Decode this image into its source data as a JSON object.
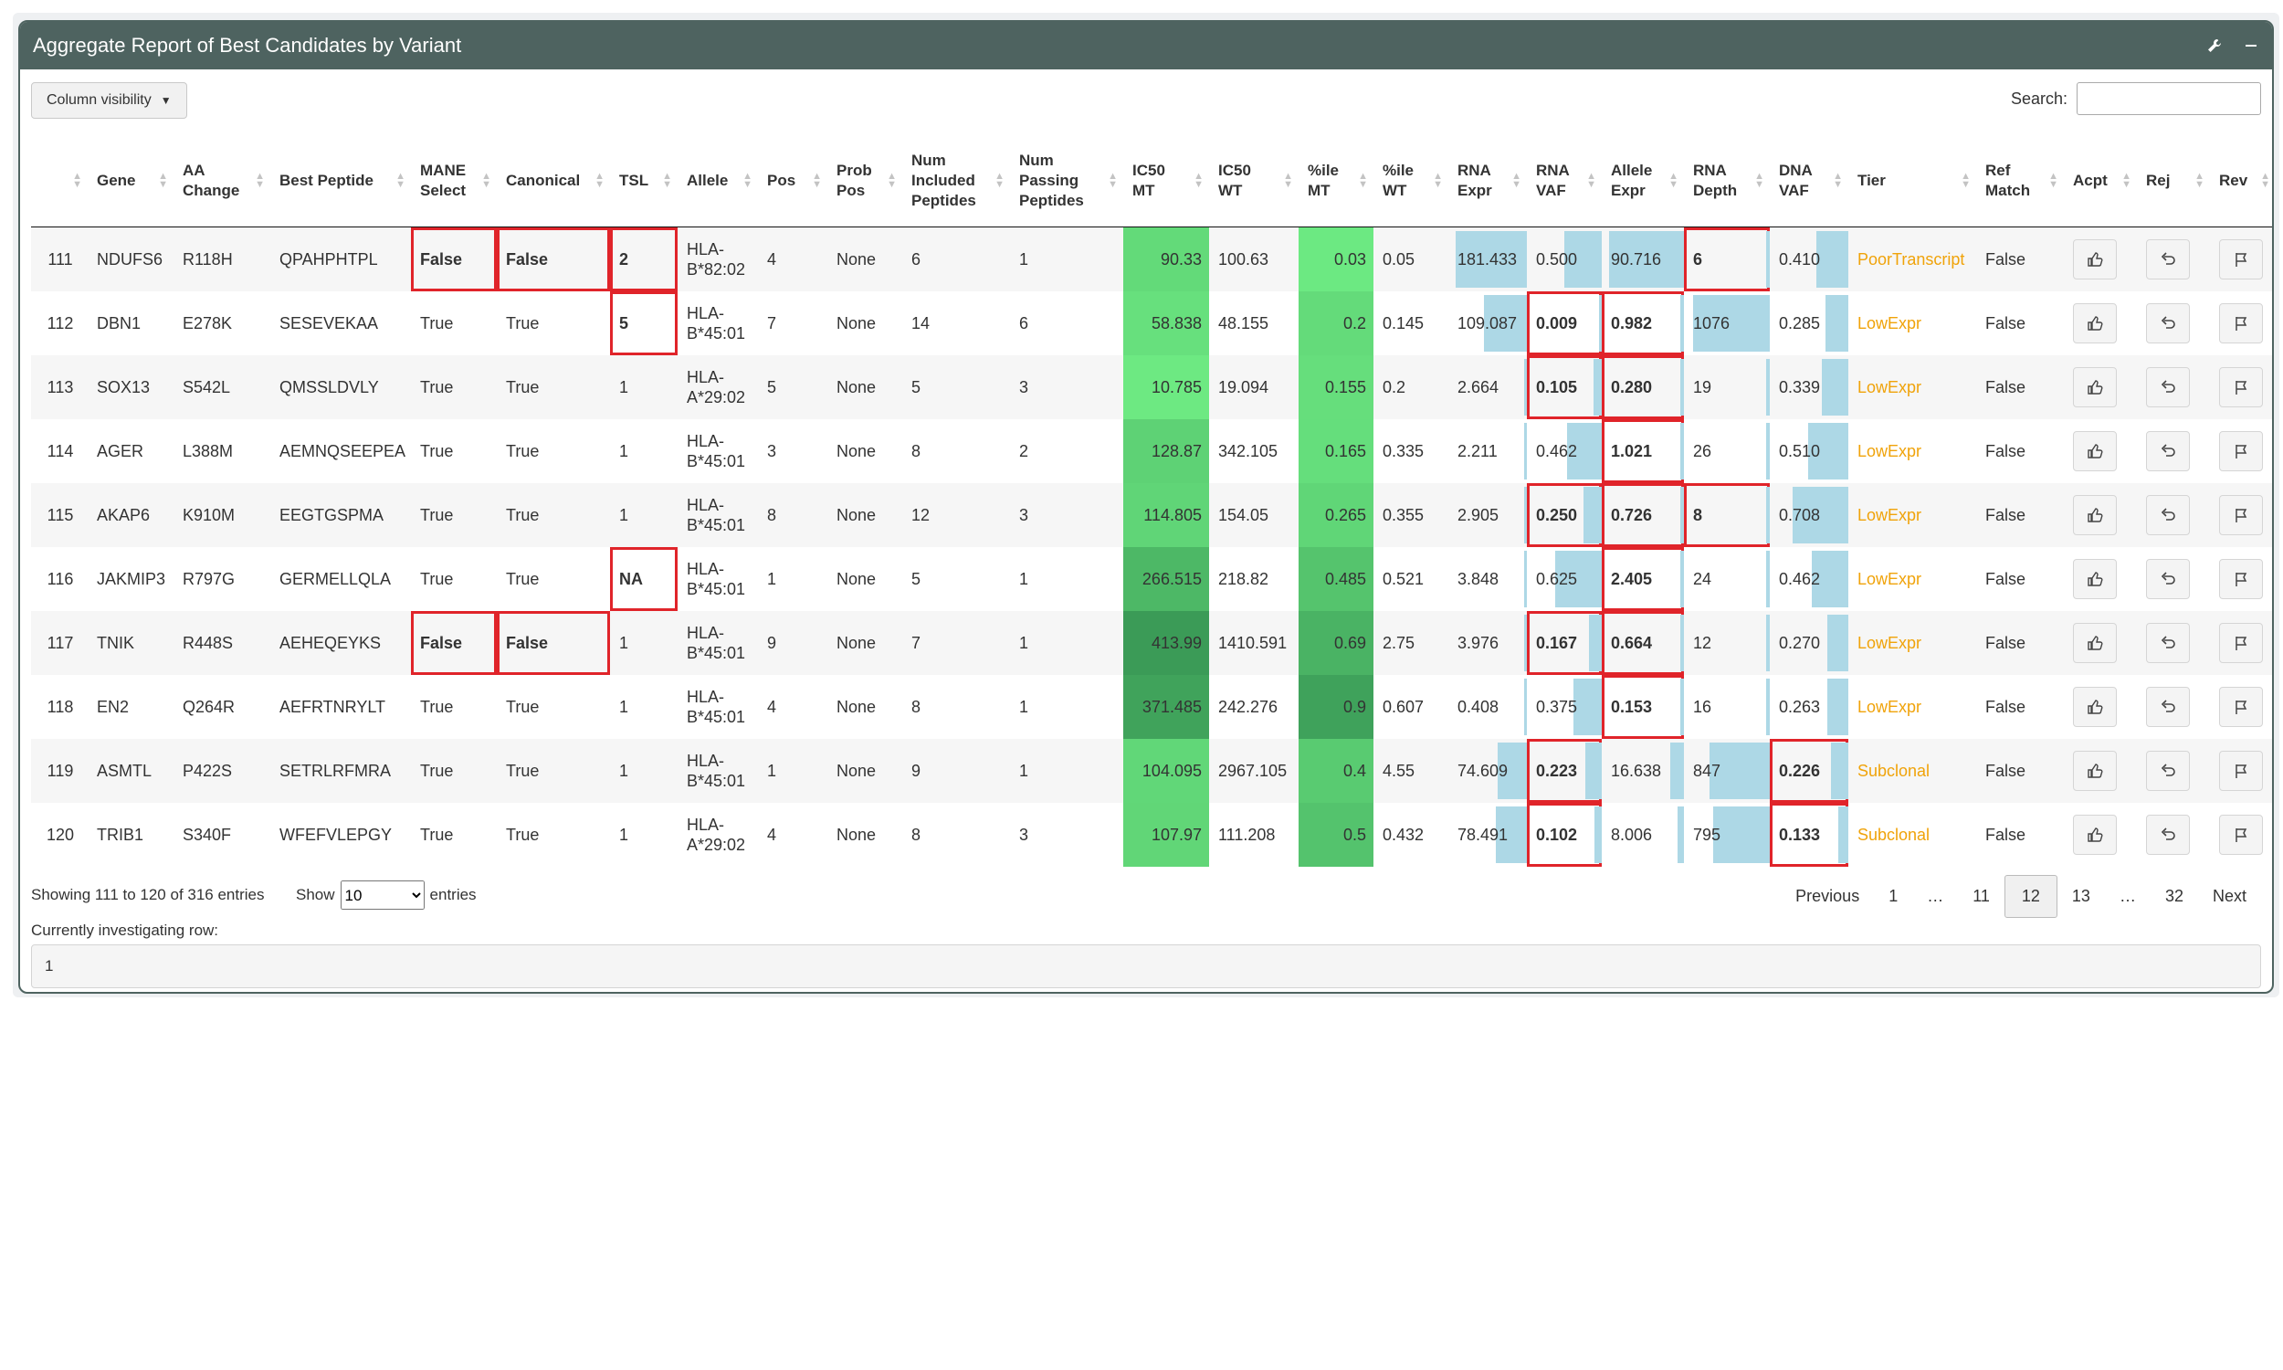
{
  "box": {
    "title": "Aggregate Report of Best Candidates by Variant",
    "wrench_icon": "wrench-icon",
    "collapse_icon": "minus-icon"
  },
  "toolbar": {
    "column_visibility": "Column visibility",
    "search_label": "Search:",
    "search_value": ""
  },
  "columns": [
    "",
    "Gene",
    "AA Change",
    "Best Peptide",
    "MANE Select",
    "Canonical",
    "TSL",
    "Allele",
    "Pos",
    "Prob Pos",
    "Num Included Peptides",
    "Num Passing Peptides",
    "IC50 MT",
    "IC50 WT",
    "%ile MT",
    "%ile WT",
    "RNA Expr",
    "RNA VAF",
    "Allele Expr",
    "RNA Depth",
    "DNA VAF",
    "Tier",
    "Ref Match",
    "Acpt",
    "Rej",
    "Rev"
  ],
  "rows": [
    {
      "idx": "111",
      "gene": "NDUFS6",
      "aa": "R118H",
      "peptide": "QPAHPHTPL",
      "mane": "False",
      "canon": "False",
      "tsl": "2",
      "allele": "HLA-B*82:02",
      "pos": "4",
      "prob": "None",
      "incl": "6",
      "pass": "1",
      "ic50mt": "90.33",
      "ic50wt": "100.63",
      "pmt": "0.03",
      "pwt": "0.05",
      "rnaexpr": "181.433",
      "rnavaf": "0.500",
      "alleleexpr": "90.716",
      "rnadepth": "6",
      "dnavaf": "0.410",
      "tier": "PoorTranscript",
      "ref": "False"
    },
    {
      "idx": "112",
      "gene": "DBN1",
      "aa": "E278K",
      "peptide": "SESEVEKAA",
      "mane": "True",
      "canon": "True",
      "tsl": "5",
      "allele": "HLA-B*45:01",
      "pos": "7",
      "prob": "None",
      "incl": "14",
      "pass": "6",
      "ic50mt": "58.838",
      "ic50wt": "48.155",
      "pmt": "0.2",
      "pwt": "0.145",
      "rnaexpr": "109.087",
      "rnavaf": "0.009",
      "alleleexpr": "0.982",
      "rnadepth": "1076",
      "dnavaf": "0.285",
      "tier": "LowExpr",
      "ref": "False"
    },
    {
      "idx": "113",
      "gene": "SOX13",
      "aa": "S542L",
      "peptide": "QMSSLDVLY",
      "mane": "True",
      "canon": "True",
      "tsl": "1",
      "allele": "HLA-A*29:02",
      "pos": "5",
      "prob": "None",
      "incl": "5",
      "pass": "3",
      "ic50mt": "10.785",
      "ic50wt": "19.094",
      "pmt": "0.155",
      "pwt": "0.2",
      "rnaexpr": "2.664",
      "rnavaf": "0.105",
      "alleleexpr": "0.280",
      "rnadepth": "19",
      "dnavaf": "0.339",
      "tier": "LowExpr",
      "ref": "False"
    },
    {
      "idx": "114",
      "gene": "AGER",
      "aa": "L388M",
      "peptide": "AEMNQSEEPEA",
      "mane": "True",
      "canon": "True",
      "tsl": "1",
      "allele": "HLA-B*45:01",
      "pos": "3",
      "prob": "None",
      "incl": "8",
      "pass": "2",
      "ic50mt": "128.87",
      "ic50wt": "342.105",
      "pmt": "0.165",
      "pwt": "0.335",
      "rnaexpr": "2.211",
      "rnavaf": "0.462",
      "alleleexpr": "1.021",
      "rnadepth": "26",
      "dnavaf": "0.510",
      "tier": "LowExpr",
      "ref": "False"
    },
    {
      "idx": "115",
      "gene": "AKAP6",
      "aa": "K910M",
      "peptide": "EEGTGSPMA",
      "mane": "True",
      "canon": "True",
      "tsl": "1",
      "allele": "HLA-B*45:01",
      "pos": "8",
      "prob": "None",
      "incl": "12",
      "pass": "3",
      "ic50mt": "114.805",
      "ic50wt": "154.05",
      "pmt": "0.265",
      "pwt": "0.355",
      "rnaexpr": "2.905",
      "rnavaf": "0.250",
      "alleleexpr": "0.726",
      "rnadepth": "8",
      "dnavaf": "0.708",
      "tier": "LowExpr",
      "ref": "False"
    },
    {
      "idx": "116",
      "gene": "JAKMIP3",
      "aa": "R797G",
      "peptide": "GERMELLQLA",
      "mane": "True",
      "canon": "True",
      "tsl": "NA",
      "allele": "HLA-B*45:01",
      "pos": "1",
      "prob": "None",
      "incl": "5",
      "pass": "1",
      "ic50mt": "266.515",
      "ic50wt": "218.82",
      "pmt": "0.485",
      "pwt": "0.521",
      "rnaexpr": "3.848",
      "rnavaf": "0.625",
      "alleleexpr": "2.405",
      "rnadepth": "24",
      "dnavaf": "0.462",
      "tier": "LowExpr",
      "ref": "False"
    },
    {
      "idx": "117",
      "gene": "TNIK",
      "aa": "R448S",
      "peptide": "AEHEQEYKS",
      "mane": "False",
      "canon": "False",
      "tsl": "1",
      "allele": "HLA-B*45:01",
      "pos": "9",
      "prob": "None",
      "incl": "7",
      "pass": "1",
      "ic50mt": "413.99",
      "ic50wt": "1410.591",
      "pmt": "0.69",
      "pwt": "2.75",
      "rnaexpr": "3.976",
      "rnavaf": "0.167",
      "alleleexpr": "0.664",
      "rnadepth": "12",
      "dnavaf": "0.270",
      "tier": "LowExpr",
      "ref": "False"
    },
    {
      "idx": "118",
      "gene": "EN2",
      "aa": "Q264R",
      "peptide": "AEFRTNRYLT",
      "mane": "True",
      "canon": "True",
      "tsl": "1",
      "allele": "HLA-B*45:01",
      "pos": "4",
      "prob": "None",
      "incl": "8",
      "pass": "1",
      "ic50mt": "371.485",
      "ic50wt": "242.276",
      "pmt": "0.9",
      "pwt": "0.607",
      "rnaexpr": "0.408",
      "rnavaf": "0.375",
      "alleleexpr": "0.153",
      "rnadepth": "16",
      "dnavaf": "0.263",
      "tier": "LowExpr",
      "ref": "False"
    },
    {
      "idx": "119",
      "gene": "ASMTL",
      "aa": "P422S",
      "peptide": "SETRLRFMRA",
      "mane": "True",
      "canon": "True",
      "tsl": "1",
      "allele": "HLA-B*45:01",
      "pos": "1",
      "prob": "None",
      "incl": "9",
      "pass": "1",
      "ic50mt": "104.095",
      "ic50wt": "2967.105",
      "pmt": "0.4",
      "pwt": "4.55",
      "rnaexpr": "74.609",
      "rnavaf": "0.223",
      "alleleexpr": "16.638",
      "rnadepth": "847",
      "dnavaf": "0.226",
      "tier": "Subclonal",
      "ref": "False"
    },
    {
      "idx": "120",
      "gene": "TRIB1",
      "aa": "S340F",
      "peptide": "WFEFVLEPGY",
      "mane": "True",
      "canon": "True",
      "tsl": "1",
      "allele": "HLA-A*29:02",
      "pos": "4",
      "prob": "None",
      "incl": "8",
      "pass": "3",
      "ic50mt": "107.97",
      "ic50wt": "111.208",
      "pmt": "0.5",
      "pwt": "0.432",
      "rnaexpr": "78.491",
      "rnavaf": "0.102",
      "alleleexpr": "8.006",
      "rnadepth": "795",
      "dnavaf": "0.133",
      "tier": "Subclonal",
      "ref": "False"
    }
  ],
  "row_icons": {
    "accept": "thumbs-up-icon",
    "reject": "undo-icon",
    "review": "flag-icon"
  },
  "footer": {
    "info": "Showing 111 to 120 of 316 entries",
    "show_label": "Show",
    "show_value": "10",
    "entries_label": "entries",
    "pagination": [
      "Previous",
      "1",
      "…",
      "11",
      "12",
      "13",
      "…",
      "32",
      "Next"
    ],
    "current_page": "12",
    "investigating_label": "Currently investigating row:",
    "investigating_value": "1"
  },
  "colors": {
    "header_bg": "#4e6360",
    "flag_border": "#e0242a",
    "tier_text": "#f0a30a",
    "bar_blue": "#add8e6",
    "ic50_green_light": "#6eeb83",
    "ic50_green_dark": "#3a9a56"
  }
}
